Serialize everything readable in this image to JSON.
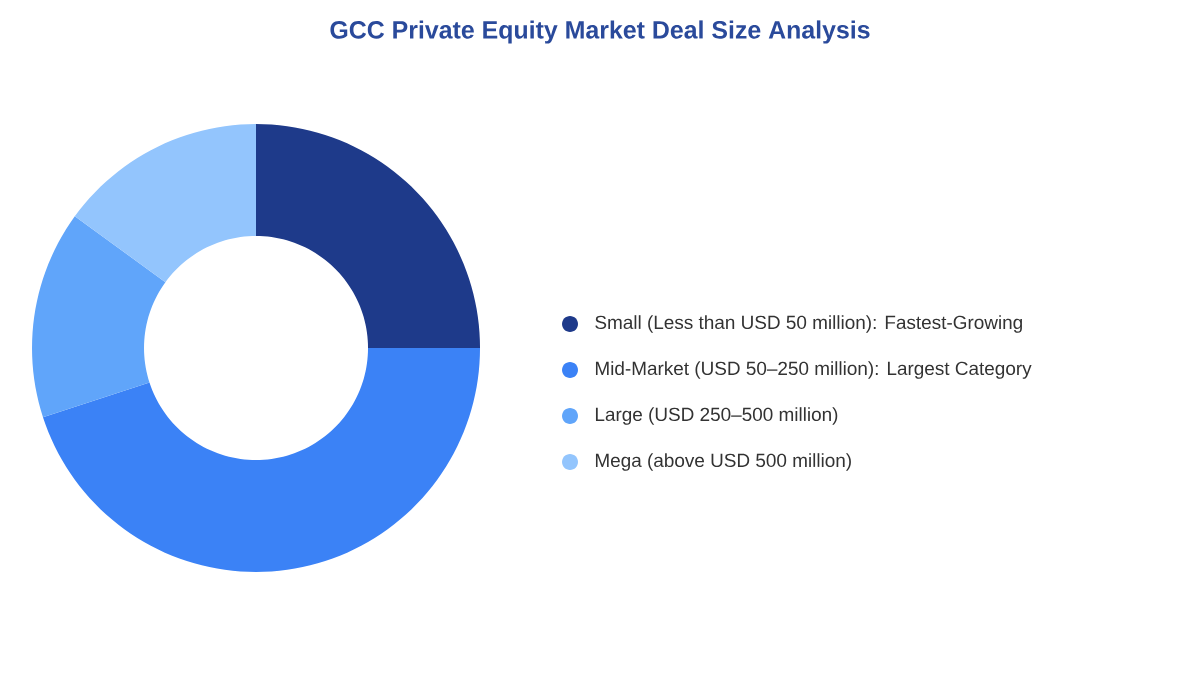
{
  "chart_data": {
    "type": "donut",
    "title": "GCC Private Equity Market Deal Size Analysis",
    "categories": [
      "Small (Less than USD 50 million):  Fastest-Growing",
      "Mid-Market (USD 50–250 million):  Largest Category",
      "Large (USD 250–500 million)",
      "Mega (above USD 500 million)"
    ],
    "values": [
      25,
      45,
      15,
      15
    ],
    "colors": [
      "#1e3a8a",
      "#3b82f6",
      "#60a5fa",
      "#93c5fd"
    ],
    "legend": "right"
  }
}
